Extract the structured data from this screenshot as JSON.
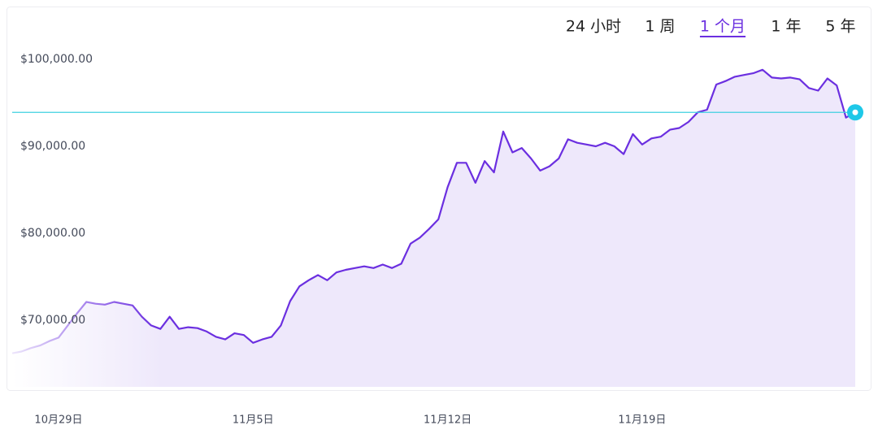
{
  "controls": {
    "tabs": [
      "24 小时",
      "1 周",
      "1 个月",
      "1 年",
      "5 年"
    ],
    "selected": 2
  },
  "chart_data": {
    "type": "line",
    "series": [
      {
        "color": "#6b2fe0",
        "values": [
          66200,
          66400,
          66800,
          67100,
          67600,
          68000,
          69400,
          70800,
          72100,
          71900,
          71800,
          72100,
          71900,
          71700,
          70400,
          69400,
          69000,
          70400,
          69000,
          69200,
          69100,
          68700,
          68100,
          67800,
          68500,
          68300,
          67400,
          67800,
          68100,
          69400,
          72200,
          73900,
          74600,
          75200,
          74600,
          75500,
          75800,
          76000,
          76200,
          76000,
          76400,
          76000,
          76500,
          78800,
          79500,
          80500,
          81600,
          85300,
          88100,
          88100,
          85800,
          88300,
          87000,
          91700,
          89300,
          89800,
          88600,
          87200,
          87700,
          88600,
          90800,
          90400,
          90200,
          90000,
          90400,
          90000,
          89100,
          91400,
          90200,
          90900,
          91100,
          91900,
          92100,
          92800,
          93900,
          94200,
          97100,
          97500,
          98000,
          98200,
          98400,
          98800,
          97900,
          97800,
          97900,
          97700,
          96700,
          96400,
          97800,
          97000,
          93300,
          93900
        ]
      }
    ],
    "current_value": 93900,
    "xlim": [
      0,
      91
    ],
    "xticks": [
      {
        "value": 5,
        "label": "10月29日"
      },
      {
        "value": 26,
        "label": "11月5日"
      },
      {
        "value": 47,
        "label": "11月12日"
      },
      {
        "value": 68,
        "label": "11月19日"
      }
    ],
    "ylim": [
      62340,
      106070
    ],
    "yticks": [
      {
        "value": 70000,
        "label": "$70,000.00"
      },
      {
        "value": 80000,
        "label": "$80,000.00"
      },
      {
        "value": 90000,
        "label": "$90,000.00"
      },
      {
        "value": 100000,
        "label": "$100,000.00"
      }
    ],
    "grid": false
  }
}
